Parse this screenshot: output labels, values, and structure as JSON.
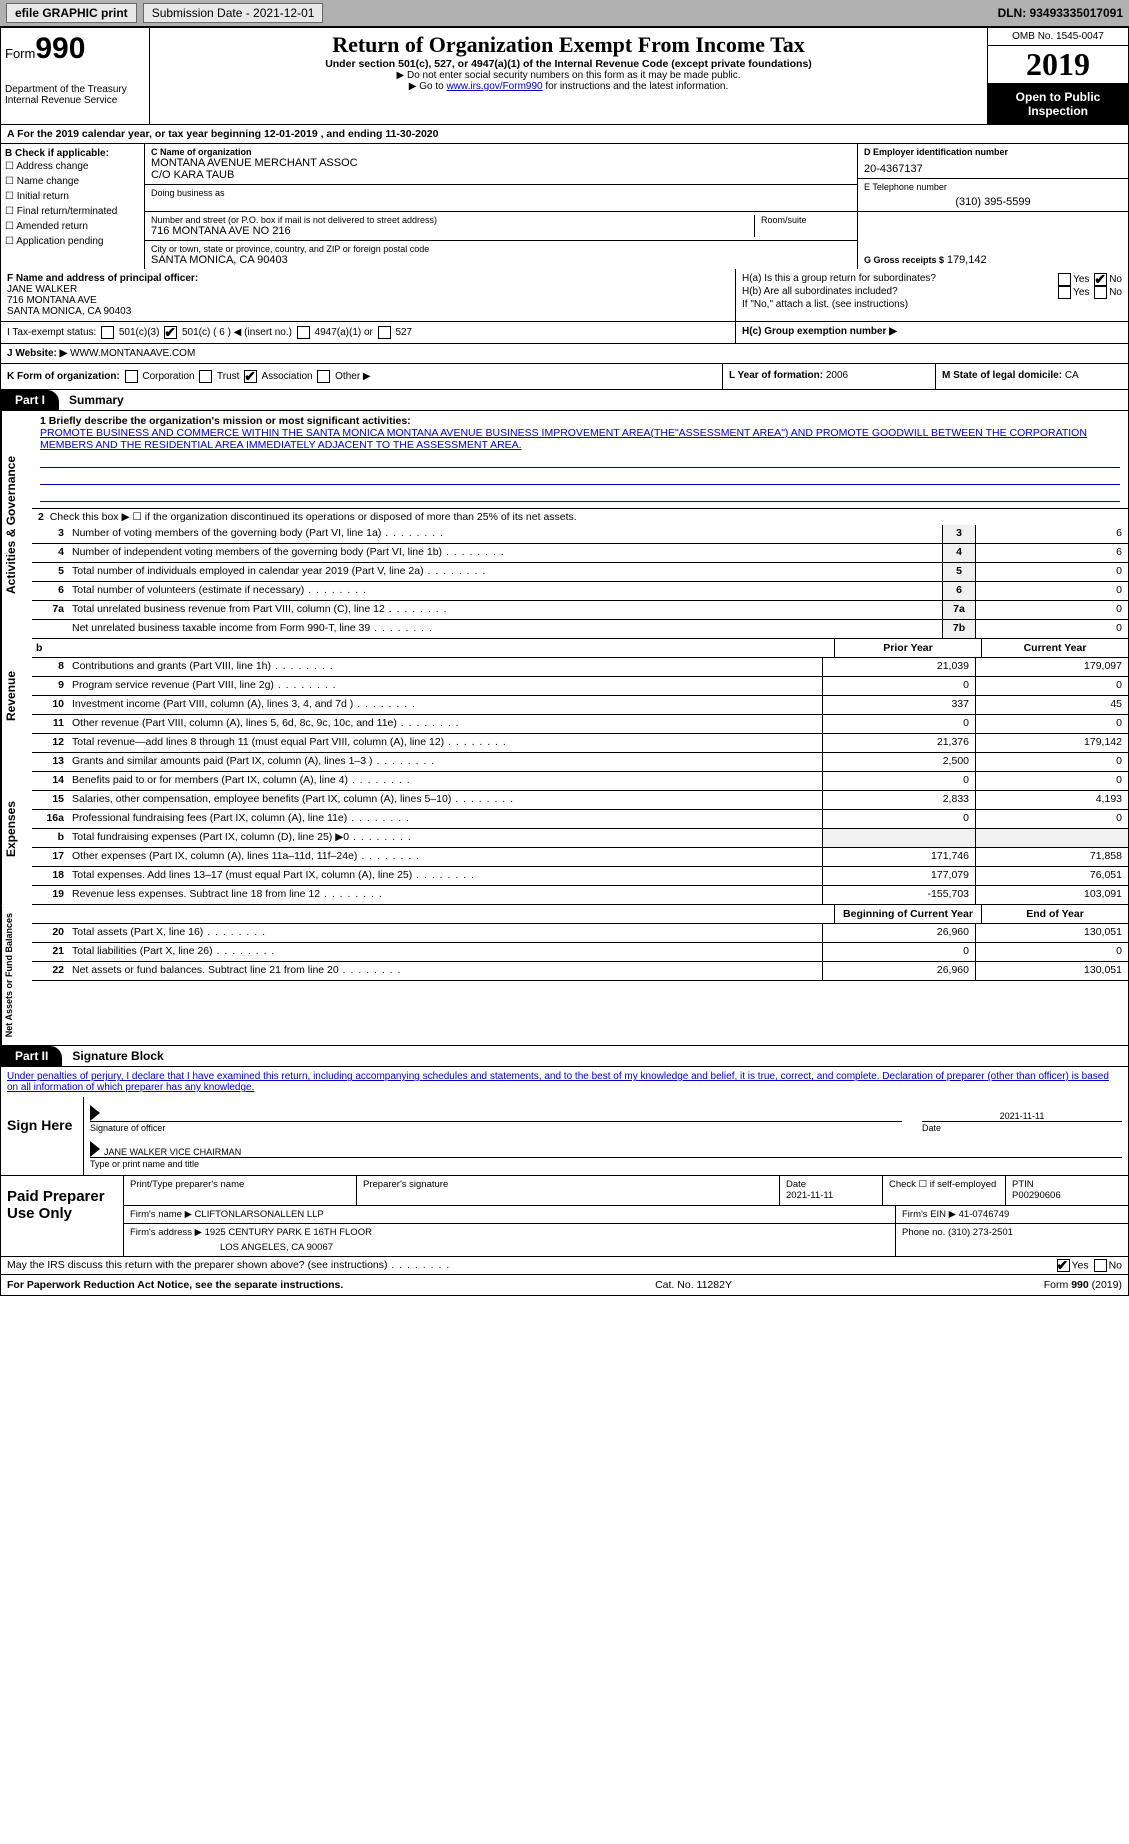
{
  "topbar": {
    "efile": "efile GRAPHIC print",
    "sub_label": "Submission Date - 2021-12-01",
    "dln": "DLN: 93493335017091"
  },
  "header": {
    "form_prefix": "Form",
    "form_num": "990",
    "dept": "Department of the Treasury",
    "irs": "Internal Revenue Service",
    "title": "Return of Organization Exempt From Income Tax",
    "sub": "Under section 501(c), 527, or 4947(a)(1) of the Internal Revenue Code (except private foundations)",
    "note1": "▶ Do not enter social security numbers on this form as it may be made public.",
    "note2_pre": "▶ Go to ",
    "note2_link": "www.irs.gov/Form990",
    "note2_post": " for instructions and the latest information.",
    "omb": "OMB No. 1545-0047",
    "year": "2019",
    "inspect1": "Open to Public",
    "inspect2": "Inspection"
  },
  "row_a": "A For the 2019 calendar year, or tax year beginning 12-01-2019    , and ending 11-30-2020",
  "box_b": {
    "title": "B Check if applicable:",
    "opts": [
      "Address change",
      "Name change",
      "Initial return",
      "Final return/terminated",
      "Amended return",
      "Application pending"
    ]
  },
  "box_c": {
    "label": "C Name of organization",
    "name": "MONTANA AVENUE MERCHANT ASSOC",
    "co": "C/O KARA TAUB",
    "dba_label": "Doing business as",
    "addr_label": "Number and street (or P.O. box if mail is not delivered to street address)",
    "room_label": "Room/suite",
    "addr": "716 MONTANA AVE NO 216",
    "city_label": "City or town, state or province, country, and ZIP or foreign postal code",
    "city": "SANTA MONICA, CA  90403"
  },
  "box_d": {
    "label": "D Employer identification number",
    "val": "20-4367137"
  },
  "box_e": {
    "label": "E Telephone number",
    "val": "(310) 395-5599"
  },
  "box_g": {
    "label": "G Gross receipts $",
    "val": "179,142"
  },
  "box_f": {
    "label": "F Name and address of principal officer:",
    "name": "JANE WALKER",
    "addr1": "716 MONTANA AVE",
    "addr2": "SANTA MONICA, CA  90403"
  },
  "box_h": {
    "a": "H(a)  Is this a group return for subordinates?",
    "b": "H(b)  Are all subordinates included?",
    "note": "If \"No,\" attach a list. (see instructions)",
    "c": "H(c)  Group exemption number ▶"
  },
  "box_i": {
    "label": "I   Tax-exempt status:",
    "o1": "501(c)(3)",
    "o2": "501(c) ( 6 ) ◀ (insert no.)",
    "o3": "4947(a)(1) or",
    "o4": "527"
  },
  "box_j": {
    "label": "J   Website: ▶",
    "val": "WWW.MONTANAAVE.COM"
  },
  "box_k": {
    "label": "K Form of organization:",
    "o1": "Corporation",
    "o2": "Trust",
    "o3": "Association",
    "o4": "Other ▶"
  },
  "box_l": {
    "label": "L Year of formation:",
    "val": "2006"
  },
  "box_m": {
    "label": "M State of legal domicile:",
    "val": "CA"
  },
  "part1": {
    "tab": "Part I",
    "title": "Summary"
  },
  "side": {
    "ag": "Activities & Governance",
    "rev": "Revenue",
    "exp": "Expenses",
    "na": "Net Assets or Fund Balances"
  },
  "mission": {
    "label": "1   Briefly describe the organization's mission or most significant activities:",
    "text": "PROMOTE BUSINESS AND COMMERCE WITHIN THE SANTA MONICA MONTANA AVENUE BUSINESS IMPROVEMENT AREA(THE\"ASSESSMENT AREA\") AND PROMOTE GOODWILL BETWEEN THE CORPORATION MEMBERS AND THE RESIDENTIAL AREA IMMEDIATELY ADJACENT TO THE ASSESSMENT AREA."
  },
  "l2": "Check this box ▶ ☐ if the organization discontinued its operations or disposed of more than 25% of its net assets.",
  "lines_ag": [
    {
      "n": "3",
      "d": "Number of voting members of the governing body (Part VI, line 1a)",
      "b": "3",
      "v": "6"
    },
    {
      "n": "4",
      "d": "Number of independent voting members of the governing body (Part VI, line 1b)",
      "b": "4",
      "v": "6"
    },
    {
      "n": "5",
      "d": "Total number of individuals employed in calendar year 2019 (Part V, line 2a)",
      "b": "5",
      "v": "0"
    },
    {
      "n": "6",
      "d": "Total number of volunteers (estimate if necessary)",
      "b": "6",
      "v": "0"
    },
    {
      "n": "7a",
      "d": "Total unrelated business revenue from Part VIII, column (C), line 12",
      "b": "7a",
      "v": "0"
    },
    {
      "n": "",
      "d": "Net unrelated business taxable income from Form 990-T, line 39",
      "b": "7b",
      "v": "0"
    }
  ],
  "col_hdr": {
    "b": "b",
    "py": "Prior Year",
    "cy": "Current Year"
  },
  "lines_rev": [
    {
      "n": "8",
      "d": "Contributions and grants (Part VIII, line 1h)",
      "py": "21,039",
      "cy": "179,097"
    },
    {
      "n": "9",
      "d": "Program service revenue (Part VIII, line 2g)",
      "py": "0",
      "cy": "0"
    },
    {
      "n": "10",
      "d": "Investment income (Part VIII, column (A), lines 3, 4, and 7d )",
      "py": "337",
      "cy": "45"
    },
    {
      "n": "11",
      "d": "Other revenue (Part VIII, column (A), lines 5, 6d, 8c, 9c, 10c, and 11e)",
      "py": "0",
      "cy": "0"
    },
    {
      "n": "12",
      "d": "Total revenue—add lines 8 through 11 (must equal Part VIII, column (A), line 12)",
      "py": "21,376",
      "cy": "179,142"
    }
  ],
  "lines_exp": [
    {
      "n": "13",
      "d": "Grants and similar amounts paid (Part IX, column (A), lines 1–3 )",
      "py": "2,500",
      "cy": "0"
    },
    {
      "n": "14",
      "d": "Benefits paid to or for members (Part IX, column (A), line 4)",
      "py": "0",
      "cy": "0"
    },
    {
      "n": "15",
      "d": "Salaries, other compensation, employee benefits (Part IX, column (A), lines 5–10)",
      "py": "2,833",
      "cy": "4,193"
    },
    {
      "n": "16a",
      "d": "Professional fundraising fees (Part IX, column (A), line 11e)",
      "py": "0",
      "cy": "0"
    },
    {
      "n": "b",
      "d": "Total fundraising expenses (Part IX, column (D), line 25) ▶0",
      "py": "",
      "cy": "",
      "grey": true
    },
    {
      "n": "17",
      "d": "Other expenses (Part IX, column (A), lines 11a–11d, 11f–24e)",
      "py": "171,746",
      "cy": "71,858"
    },
    {
      "n": "18",
      "d": "Total expenses. Add lines 13–17 (must equal Part IX, column (A), line 25)",
      "py": "177,079",
      "cy": "76,051"
    },
    {
      "n": "19",
      "d": "Revenue less expenses. Subtract line 18 from line 12",
      "py": "-155,703",
      "cy": "103,091"
    }
  ],
  "col_hdr2": {
    "py": "Beginning of Current Year",
    "cy": "End of Year"
  },
  "lines_na": [
    {
      "n": "20",
      "d": "Total assets (Part X, line 16)",
      "py": "26,960",
      "cy": "130,051"
    },
    {
      "n": "21",
      "d": "Total liabilities (Part X, line 26)",
      "py": "0",
      "cy": "0"
    },
    {
      "n": "22",
      "d": "Net assets or fund balances. Subtract line 21 from line 20",
      "py": "26,960",
      "cy": "130,051"
    }
  ],
  "part2": {
    "tab": "Part II",
    "title": "Signature Block"
  },
  "sig": {
    "decl": "Under penalties of perjury, I declare that I have examined this return, including accompanying schedules and statements, and to the best of my knowledge and belief, it is true, correct, and complete. Declaration of preparer (other than officer) is based on all information of which preparer has any knowledge.",
    "here": "Sign Here",
    "date": "2021-11-11",
    "sig_of": "Signature of officer",
    "date_lbl": "Date",
    "name": "JANE WALKER  VICE CHAIRMAN",
    "name_lbl": "Type or print name and title"
  },
  "paid": {
    "label": "Paid Preparer Use Only",
    "h1": "Print/Type preparer's name",
    "h2": "Preparer's signature",
    "h3_l": "Date",
    "h3": "2021-11-11",
    "h4": "Check ☐ if self-employed",
    "h5_l": "PTIN",
    "h5": "P00290606",
    "firm_l": "Firm's name    ▶",
    "firm": "CLIFTONLARSONALLEN LLP",
    "ein_l": "Firm's EIN ▶",
    "ein": "41-0746749",
    "addr_l": "Firm's address ▶",
    "addr1": "1925 CENTURY PARK E 16TH FLOOR",
    "addr2": "LOS ANGELES, CA  90067",
    "ph_l": "Phone no.",
    "ph": "(310) 273-2501",
    "discuss": "May the IRS discuss this return with the preparer shown above? (see instructions)"
  },
  "footer": {
    "pw": "For Paperwork Reduction Act Notice, see the separate instructions.",
    "cat": "Cat. No. 11282Y",
    "form": "Form 990 (2019)"
  },
  "yn": {
    "yes": "Yes",
    "no": "No"
  }
}
